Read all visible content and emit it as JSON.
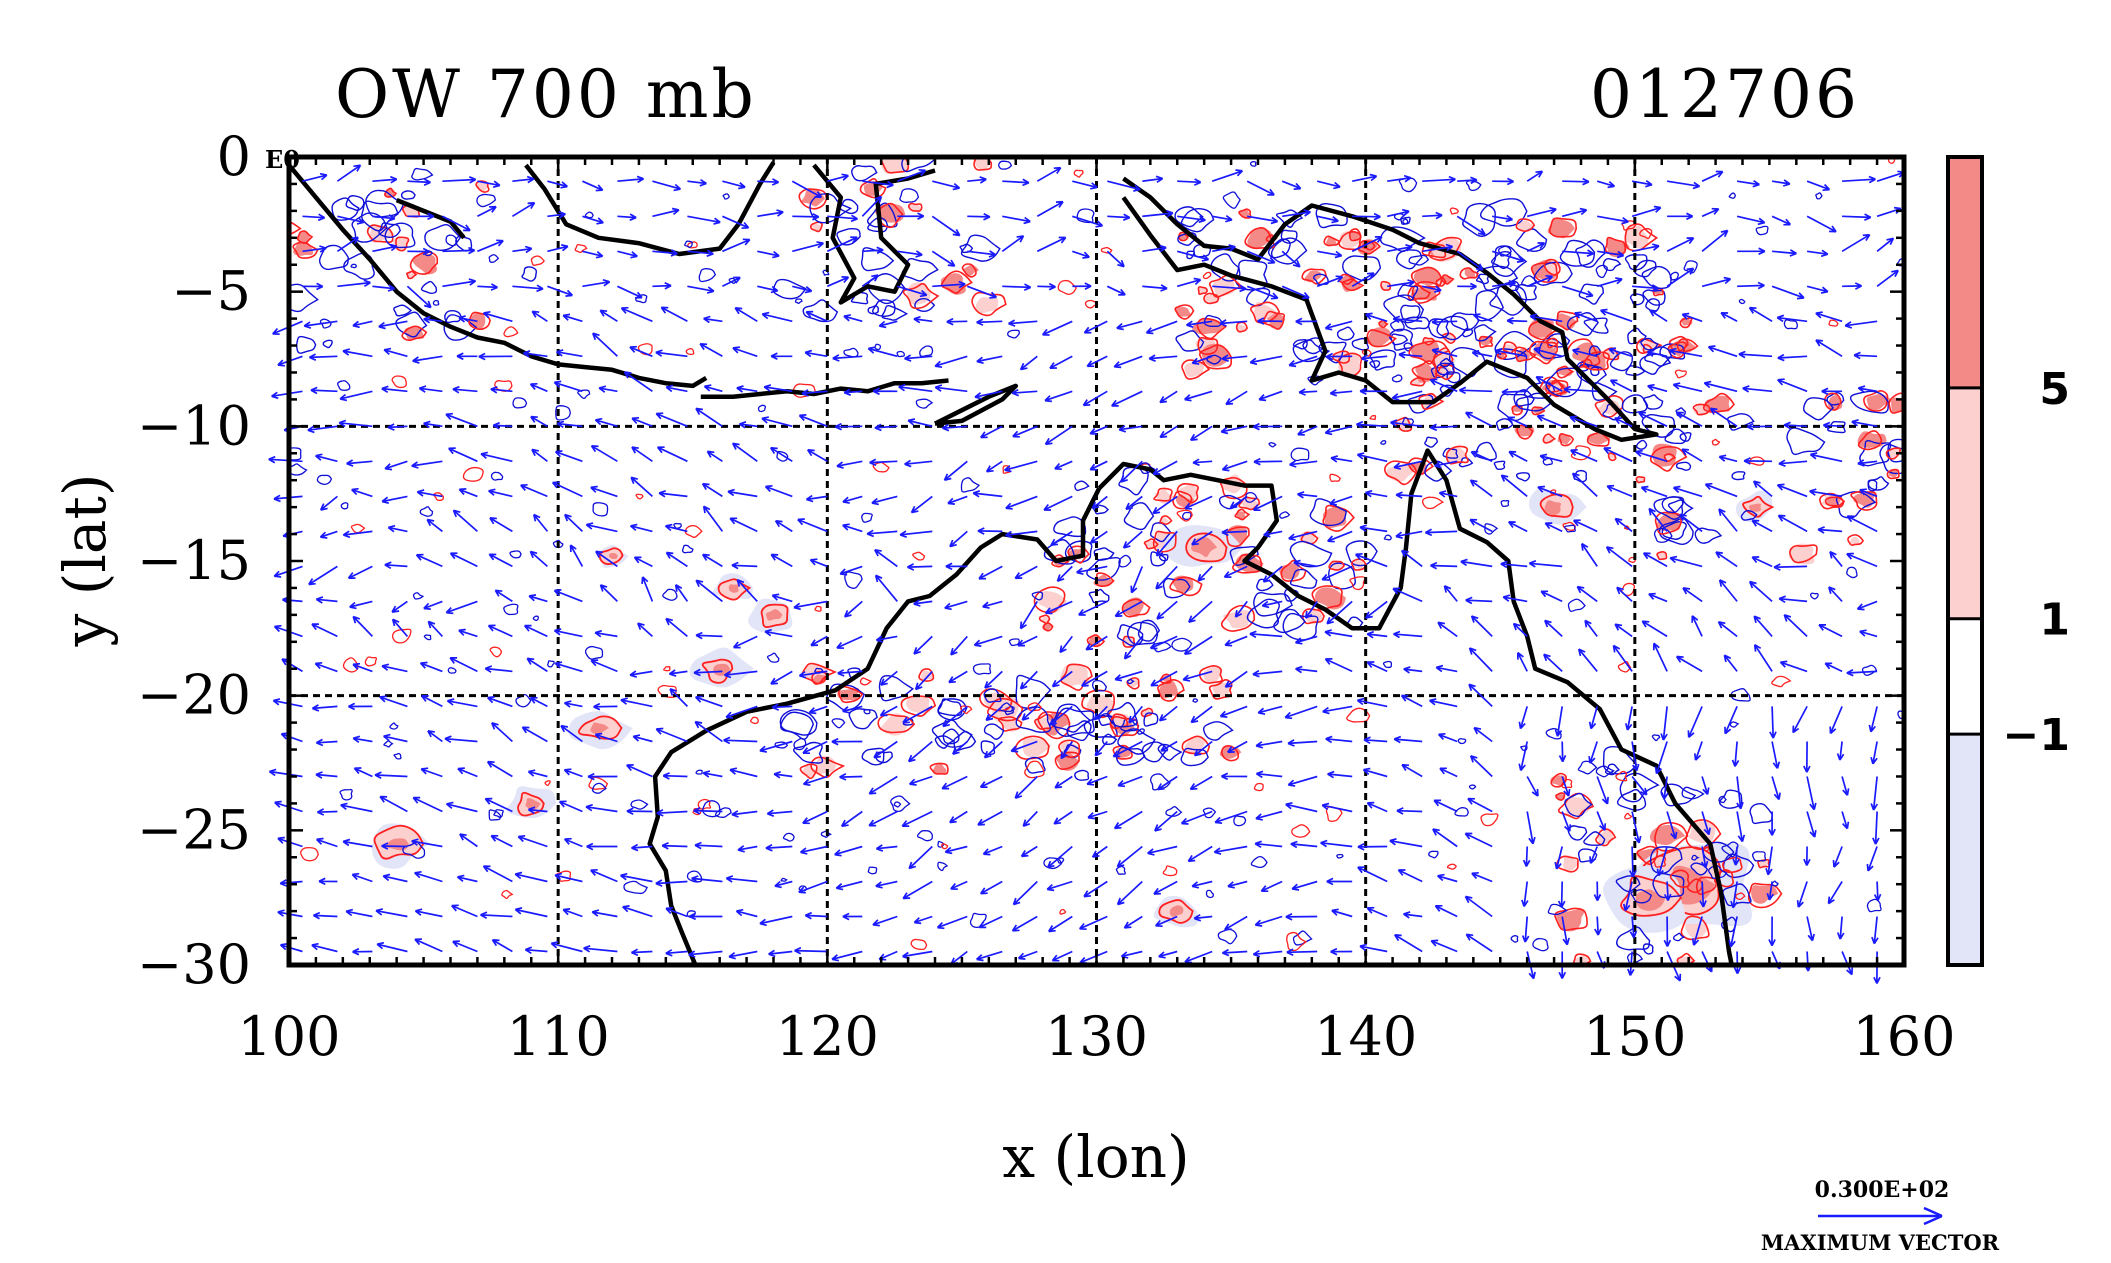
{
  "chart_data": {
    "type": "contour-vector-map",
    "title_left": "OW 700 mb",
    "title_right": "012706",
    "corner_label": "E0",
    "xlabel": "x (lon)",
    "ylabel": "y (lat)",
    "xlim": [
      100,
      160
    ],
    "ylim": [
      -30,
      0
    ],
    "x_ticks": [
      {
        "value": 100,
        "label": "100"
      },
      {
        "value": 110,
        "label": "110"
      },
      {
        "value": 120,
        "label": "120"
      },
      {
        "value": 130,
        "label": "130"
      },
      {
        "value": 140,
        "label": "140"
      },
      {
        "value": 150,
        "label": "150"
      },
      {
        "value": 160,
        "label": "160"
      }
    ],
    "y_ticks": [
      {
        "value": 0,
        "label": "0"
      },
      {
        "value": -5,
        "label": "−5"
      },
      {
        "value": -10,
        "label": "−10"
      },
      {
        "value": -15,
        "label": "−15"
      },
      {
        "value": -20,
        "label": "−20"
      },
      {
        "value": -25,
        "label": "−25"
      },
      {
        "value": -30,
        "label": "−30"
      }
    ],
    "grid_lon": [
      110,
      120,
      130,
      140,
      150
    ],
    "grid_lat": [
      -10,
      -20
    ],
    "colorbar": {
      "levels": [
        {
          "value": 5,
          "label": "5"
        },
        {
          "value": 1,
          "label": "1"
        },
        {
          "value": -1,
          "label": "−1"
        }
      ],
      "bands": [
        {
          "from": 5,
          "to": 9,
          "color": "#f48a88"
        },
        {
          "from": 1,
          "to": 5,
          "color": "#fbd0cf"
        },
        {
          "from": -1,
          "to": 1,
          "color": "#ffffff"
        },
        {
          "from": -5,
          "to": -1,
          "color": "#e2e4f8"
        }
      ]
    },
    "vector_legend": {
      "value_label": "0.300E+02",
      "caption": "MAXIMUM VECTOR"
    },
    "colors": {
      "positive_contour": "#ff2020",
      "positive_fill_strong": "#f48a88",
      "positive_fill_weak": "#fbd0cf",
      "negative_contour": "#1010d8",
      "negative_fill": "#e2e4f8",
      "vector": "#1a1aff",
      "coastline": "#000000"
    },
    "coastlines": [
      [
        [
          100,
          -0.3
        ],
        [
          101,
          -1.5
        ],
        [
          102,
          -2.7
        ],
        [
          103,
          -3.8
        ],
        [
          104,
          -5.0
        ],
        [
          105,
          -5.8
        ],
        [
          106,
          -6.3
        ],
        [
          107,
          -6.7
        ],
        [
          108,
          -6.9
        ],
        [
          109,
          -7.4
        ],
        [
          110,
          -7.7
        ],
        [
          111,
          -7.8
        ],
        [
          112,
          -7.9
        ],
        [
          113,
          -8.2
        ],
        [
          114,
          -8.4
        ],
        [
          115,
          -8.5
        ],
        [
          115.5,
          -8.2
        ]
      ],
      [
        [
          104,
          -1.6
        ],
        [
          105,
          -2.0
        ],
        [
          106,
          -2.4
        ],
        [
          106.5,
          -3.0
        ]
      ],
      [
        [
          108.8,
          -0.3
        ],
        [
          109.5,
          -1.2
        ],
        [
          110.3,
          -2.5
        ],
        [
          111.5,
          -3.0
        ],
        [
          113,
          -3.2
        ],
        [
          114.5,
          -3.6
        ],
        [
          116,
          -3.4
        ],
        [
          116.7,
          -2.5
        ],
        [
          117.5,
          -1.0
        ],
        [
          118,
          -0.2
        ]
      ],
      [
        [
          115.3,
          -8.9
        ],
        [
          116.5,
          -8.9
        ],
        [
          117.5,
          -8.8
        ],
        [
          118.5,
          -8.7
        ],
        [
          119.5,
          -8.8
        ],
        [
          120.5,
          -8.6
        ],
        [
          121.5,
          -8.7
        ],
        [
          122.5,
          -8.4
        ],
        [
          123.5,
          -8.4
        ],
        [
          124.5,
          -8.3
        ]
      ],
      [
        [
          124,
          -9.9
        ],
        [
          125,
          -9.4
        ],
        [
          126,
          -8.9
        ],
        [
          127,
          -8.5
        ],
        [
          126.5,
          -9.0
        ],
        [
          125,
          -9.8
        ],
        [
          124,
          -9.9
        ]
      ],
      [
        [
          119.5,
          -0.3
        ],
        [
          120.5,
          -1.5
        ],
        [
          120.2,
          -3.0
        ],
        [
          121.0,
          -4.5
        ],
        [
          120.5,
          -5.4
        ],
        [
          121.5,
          -4.8
        ],
        [
          122.5,
          -5.0
        ],
        [
          123.0,
          -4.0
        ],
        [
          122.0,
          -3.0
        ],
        [
          121.8,
          -1.0
        ],
        [
          123.0,
          -0.8
        ],
        [
          124.0,
          -0.5
        ]
      ],
      [
        [
          131,
          -0.8
        ],
        [
          132,
          -1.5
        ],
        [
          133,
          -2.5
        ],
        [
          134,
          -3.3
        ],
        [
          135,
          -3.4
        ],
        [
          136,
          -3.8
        ],
        [
          137,
          -2.5
        ],
        [
          138,
          -1.8
        ],
        [
          139.5,
          -2.2
        ],
        [
          141,
          -2.7
        ],
        [
          142,
          -3.2
        ],
        [
          143.5,
          -3.6
        ],
        [
          144.5,
          -4.3
        ],
        [
          145.5,
          -5.1
        ],
        [
          146.5,
          -6.1
        ],
        [
          147.3,
          -6.5
        ],
        [
          147.5,
          -7.5
        ],
        [
          148.2,
          -8.2
        ],
        [
          149,
          -9.0
        ],
        [
          150,
          -10.1
        ],
        [
          150.8,
          -10.3
        ],
        [
          149.5,
          -10.5
        ],
        [
          148.5,
          -10.1
        ],
        [
          147,
          -9.2
        ],
        [
          146,
          -8.2
        ],
        [
          144.5,
          -7.6
        ],
        [
          143.5,
          -8.4
        ],
        [
          142.5,
          -9.1
        ],
        [
          141,
          -9.1
        ],
        [
          140,
          -8.3
        ],
        [
          139,
          -8.0
        ],
        [
          138,
          -8.3
        ],
        [
          138.5,
          -7.2
        ],
        [
          137.8,
          -5.3
        ],
        [
          136.5,
          -4.8
        ],
        [
          135,
          -4.4
        ],
        [
          134,
          -4.0
        ],
        [
          133,
          -4.2
        ],
        [
          132,
          -2.9
        ],
        [
          131,
          -1.5
        ]
      ],
      [
        [
          130.1,
          -12.3
        ],
        [
          131,
          -11.4
        ],
        [
          132,
          -11.6
        ],
        [
          132.5,
          -12.0
        ],
        [
          133.5,
          -11.8
        ],
        [
          134.5,
          -12.0
        ],
        [
          135.5,
          -12.2
        ],
        [
          136.5,
          -12.2
        ],
        [
          136.7,
          -13.5
        ],
        [
          136.0,
          -14.5
        ],
        [
          135.5,
          -15.0
        ],
        [
          136.5,
          -15.5
        ],
        [
          137.5,
          -16.3
        ],
        [
          138.5,
          -16.8
        ],
        [
          139.5,
          -17.5
        ],
        [
          140.5,
          -17.5
        ],
        [
          141.3,
          -16.0
        ],
        [
          141.5,
          -14.5
        ],
        [
          141.7,
          -12.5
        ],
        [
          142.3,
          -10.9
        ],
        [
          143.0,
          -12.0
        ],
        [
          143.5,
          -13.8
        ],
        [
          144.5,
          -14.3
        ],
        [
          145.3,
          -15.0
        ],
        [
          145.5,
          -16.5
        ],
        [
          146.0,
          -17.8
        ],
        [
          146.3,
          -19.0
        ],
        [
          147.5,
          -19.5
        ],
        [
          148.7,
          -20.5
        ],
        [
          149.5,
          -22.0
        ],
        [
          150.8,
          -22.6
        ],
        [
          151.5,
          -24.0
        ],
        [
          152.8,
          -25.5
        ],
        [
          153.2,
          -27.3
        ],
        [
          153.5,
          -29.5
        ],
        [
          153.6,
          -30.0
        ]
      ],
      [
        [
          130.1,
          -12.3
        ],
        [
          129.5,
          -13.5
        ],
        [
          129.5,
          -14.8
        ],
        [
          128.5,
          -15.0
        ],
        [
          127.8,
          -14.2
        ],
        [
          126.5,
          -14.0
        ],
        [
          125.7,
          -14.5
        ],
        [
          124.8,
          -15.5
        ],
        [
          123.8,
          -16.3
        ],
        [
          123.0,
          -16.5
        ],
        [
          122.2,
          -17.5
        ],
        [
          121.5,
          -19.0
        ],
        [
          120.3,
          -19.8
        ],
        [
          118.5,
          -20.3
        ],
        [
          117.0,
          -20.6
        ],
        [
          115.5,
          -21.3
        ],
        [
          114.2,
          -22.1
        ],
        [
          113.6,
          -23.0
        ],
        [
          113.7,
          -24.5
        ],
        [
          113.4,
          -25.5
        ],
        [
          114.0,
          -26.5
        ],
        [
          114.2,
          -27.8
        ],
        [
          114.6,
          -28.8
        ],
        [
          115.1,
          -30.0
        ]
      ]
    ]
  }
}
